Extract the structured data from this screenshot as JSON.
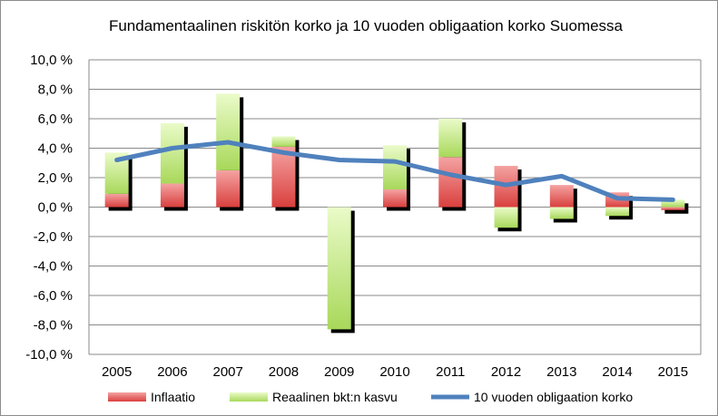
{
  "chart_data": {
    "type": "bar",
    "title": "Fundamentaalinen riskitön korko ja 10 vuoden obligaation korko Suomessa",
    "categories": [
      "2005",
      "2006",
      "2007",
      "2008",
      "2009",
      "2010",
      "2011",
      "2012",
      "2013",
      "2014",
      "2015"
    ],
    "series": [
      {
        "name": "Inflaatio",
        "kind": "stacked-bar",
        "color": "#e8605f",
        "values": [
          0.9,
          1.6,
          2.5,
          4.1,
          0.0,
          1.2,
          3.4,
          2.8,
          1.5,
          1.0,
          -0.2
        ]
      },
      {
        "name": "Reaalinen bkt:n kasvu",
        "kind": "stacked-bar",
        "color": "#b4e06a",
        "values": [
          2.8,
          4.1,
          5.2,
          0.7,
          -8.3,
          3.0,
          2.6,
          -1.4,
          -0.8,
          -0.6,
          0.5
        ]
      },
      {
        "name": "10 vuoden obligaation korko",
        "kind": "line",
        "color": "#4f81bd",
        "values": [
          3.2,
          4.0,
          4.4,
          3.7,
          3.2,
          3.1,
          2.2,
          1.5,
          2.1,
          0.6,
          0.5
        ]
      }
    ],
    "ylim": [
      -10,
      10
    ],
    "ytick_step": 2,
    "ytick_labels": [
      "10,0 %",
      "8,0 %",
      "6,0 %",
      "4,0 %",
      "2,0 %",
      "0,0 %",
      "-2,0 %",
      "-4,0 %",
      "-6,0 %",
      "-8,0 %",
      "-10,0 %"
    ],
    "grid": true,
    "legend": "bottom",
    "shadow": true
  }
}
